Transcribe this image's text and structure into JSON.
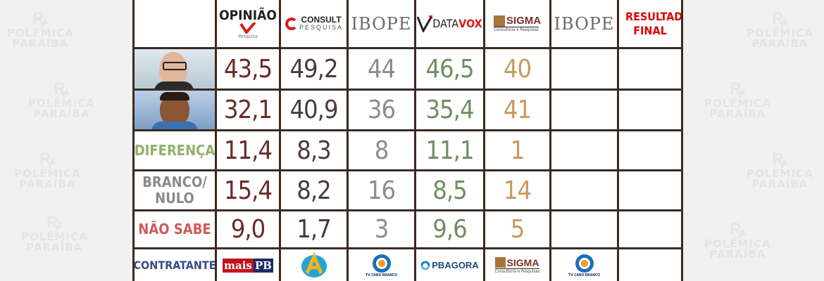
{
  "watermark": {
    "line1": "POLÊMICA",
    "line2": "PARAÍBA"
  },
  "header": {
    "opiniao": "OPINIÃO",
    "opiniao_small": "Pesquisa",
    "consult": "CONSULT",
    "consult_small": "PESQUISA",
    "ibope1": "IBOPE",
    "datavox_a": "DATA",
    "datavox_b": "VOX",
    "sigma": "SIGMA",
    "sigma_small": "Consultoria e Pesquisas",
    "ibope2": "IBOPE",
    "resultado": "RESULTADO FINAL"
  },
  "rows": {
    "cand1": [
      "43,5",
      "49,2",
      "44",
      "46,5",
      "40"
    ],
    "cand2": [
      "32,1",
      "40,9",
      "36",
      "35,4",
      "41"
    ],
    "diferenca": {
      "label": "DIFERENÇA",
      "values": [
        "11,4",
        "8,3",
        "8",
        "11,1",
        "1"
      ]
    },
    "branco": {
      "label": "BRANCO/ NULO",
      "values": [
        "15,4",
        "8,2",
        "16",
        "8,5",
        "14"
      ]
    },
    "naosabe": {
      "label": "NÃO SABE",
      "values": [
        "9,0",
        "1,7",
        "3",
        "9,6",
        "5"
      ]
    },
    "contratante": {
      "label": "CONTRATANTE"
    }
  },
  "contratantes": {
    "maispb_a": "mais",
    "maispb_b": "PB",
    "tv1": "TV CABO BRANCO",
    "pbagora": "PBAGORA",
    "sigma": "SIGMA",
    "sigma_small": "Consultoria e Pesquisas",
    "tv2": "TV CABO BRANCO"
  },
  "colors": {
    "opiniao": "#6b2a2a",
    "consult": "#4a3a3a",
    "ibope": "#8c8c8c",
    "datavox": "#6e8f5e",
    "sigma": "#c79a5e",
    "diferenca": "#8fb16a",
    "branco": "#8a8a8a",
    "naosabe": "#d05a5a",
    "contratante": "#3b4a8a",
    "resultado": "#e00000"
  }
}
